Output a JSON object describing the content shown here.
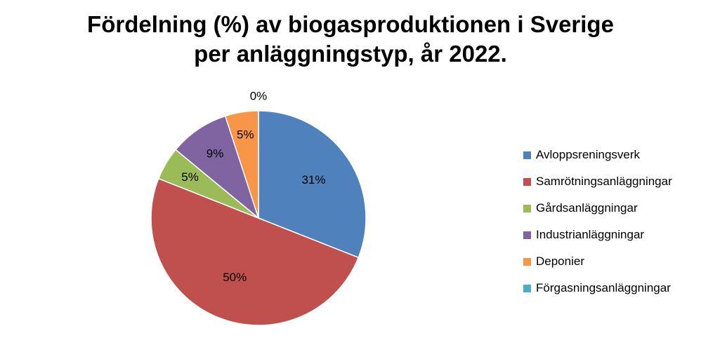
{
  "chart_data": {
    "type": "pie",
    "title_line1": "Fördelning (%) av biogasproduktionen i Sverige",
    "title_line2": "per anläggningstyp, år 2022.",
    "legend_position": "right",
    "slices": [
      {
        "label": "Avloppsreningsverk",
        "value": 31,
        "display": "31%",
        "color": "#4F81BD"
      },
      {
        "label": "Samrötningsanläggningar",
        "value": 50,
        "display": "50%",
        "color": "#C0504D"
      },
      {
        "label": "Gårdsanläggningar",
        "value": 5,
        "display": "5%",
        "color": "#9BBB59"
      },
      {
        "label": "Industrianläggningar",
        "value": 9,
        "display": "9%",
        "color": "#8064A2"
      },
      {
        "label": "Deponier",
        "value": 5,
        "display": "5%",
        "color": "#F79646"
      },
      {
        "label": "Förgasningsanläggningar",
        "value": 0,
        "display": "0%",
        "color": "#4BACC6"
      }
    ]
  }
}
